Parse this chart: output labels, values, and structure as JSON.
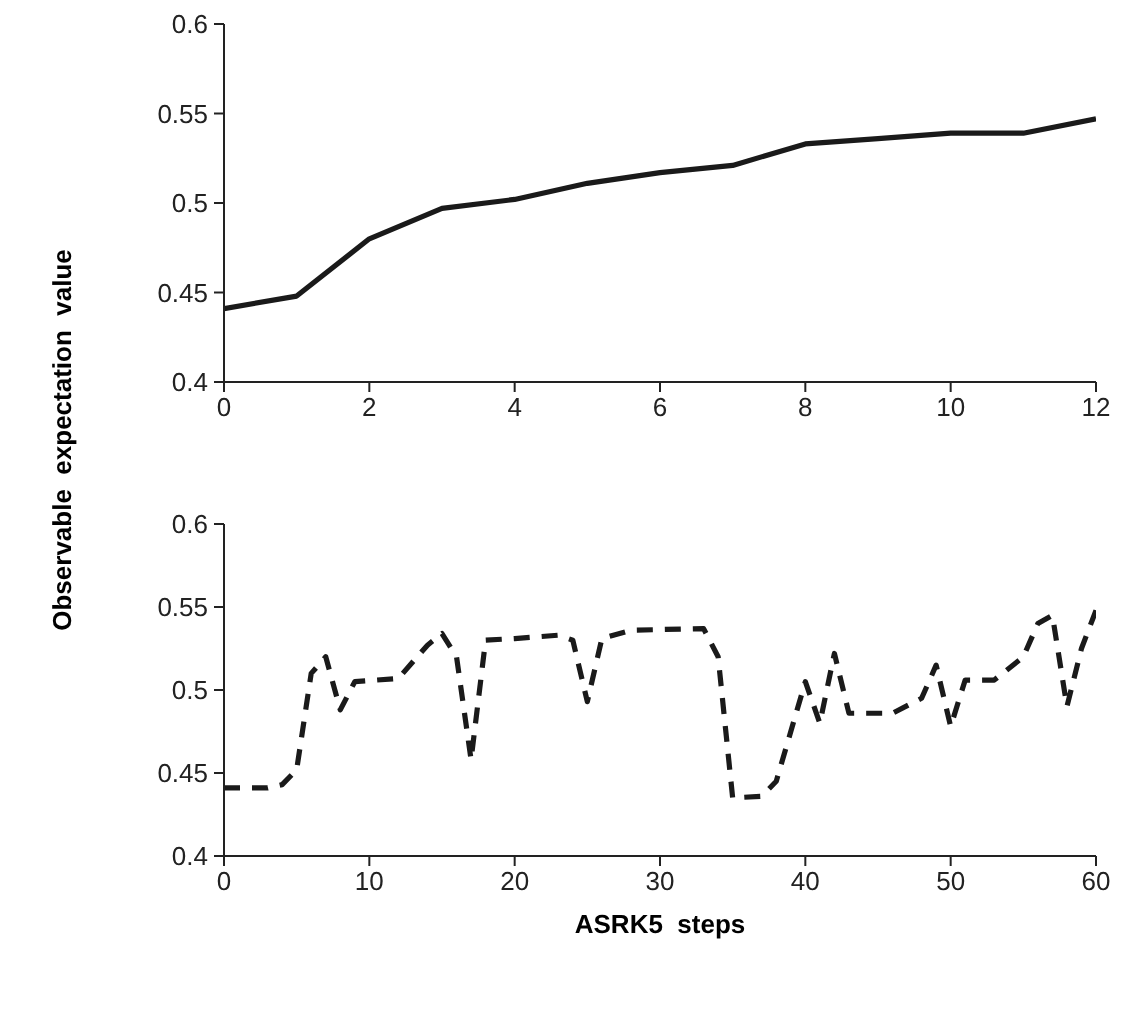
{
  "chart_data": [
    {
      "type": "line",
      "ylabel": "Observable  expectation  value",
      "x": [
        0,
        1,
        2,
        3,
        4,
        5,
        6,
        7,
        8,
        9,
        10,
        11,
        12
      ],
      "series": [
        {
          "color": "#1a1a1a",
          "line_style": "solid",
          "values": [
            0.441,
            0.448,
            0.48,
            0.497,
            0.502,
            0.511,
            0.517,
            0.521,
            0.533,
            0.536,
            0.539,
            0.539,
            0.547
          ]
        }
      ],
      "xlim": [
        0,
        12
      ],
      "xticks": [
        0,
        2,
        4,
        6,
        8,
        10,
        12
      ],
      "ylim": [
        0.4,
        0.6
      ],
      "yticks": [
        0.4,
        0.45,
        0.5,
        0.55,
        0.6
      ],
      "grid": false,
      "legend": false,
      "marker": "none"
    },
    {
      "type": "line",
      "xlabel": "ASRK5  steps",
      "x": [
        0,
        3,
        4,
        5,
        6,
        7,
        8,
        9,
        12,
        14,
        15,
        16,
        17,
        18,
        20,
        23,
        24,
        25,
        26,
        28,
        33,
        34,
        35,
        37,
        38,
        40,
        41,
        42,
        43,
        46,
        48,
        49,
        50,
        51,
        53,
        55,
        56,
        57,
        58,
        59,
        60
      ],
      "series": [
        {
          "color": "#1a1a1a",
          "line_style": "dashed",
          "values": [
            0.441,
            0.441,
            0.443,
            0.452,
            0.51,
            0.52,
            0.488,
            0.505,
            0.507,
            0.527,
            0.534,
            0.52,
            0.458,
            0.53,
            0.531,
            0.533,
            0.53,
            0.493,
            0.531,
            0.536,
            0.537,
            0.52,
            0.435,
            0.436,
            0.445,
            0.505,
            0.48,
            0.522,
            0.486,
            0.486,
            0.495,
            0.515,
            0.478,
            0.506,
            0.506,
            0.52,
            0.54,
            0.545,
            0.49,
            0.525,
            0.548
          ]
        }
      ],
      "xlim": [
        0,
        60
      ],
      "xticks": [
        0,
        10,
        20,
        30,
        40,
        50,
        60
      ],
      "ylim": [
        0.4,
        0.6
      ],
      "yticks": [
        0.4,
        0.45,
        0.5,
        0.55,
        0.6
      ],
      "grid": false,
      "legend": false,
      "marker": "none"
    }
  ]
}
